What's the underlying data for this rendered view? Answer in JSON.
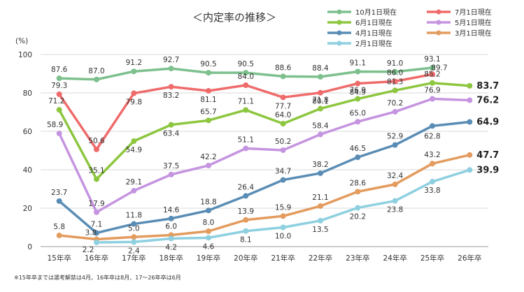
{
  "chart_data": {
    "type": "line",
    "title": "＜内定率の推移＞",
    "ylabel": "(%)",
    "ylim": [
      0,
      100
    ],
    "yticks": [
      "0",
      "20",
      "40",
      "60",
      "80",
      "100"
    ],
    "categories": [
      "15年卒",
      "16年卒",
      "17年卒",
      "18年卒",
      "19年卒",
      "20年卒",
      "21年卒",
      "22年卒",
      "23年卒",
      "24年卒",
      "25年卒",
      "26年卒"
    ],
    "legend_position": "top-right",
    "grid": true,
    "series": [
      {
        "name": "10月1日現在",
        "color": "#7dc08d",
        "values": [
          87.6,
          87.0,
          91.2,
          92.7,
          90.5,
          90.5,
          88.6,
          88.4,
          91.1,
          91.0,
          93.1,
          null
        ],
        "labels": [
          "87.6",
          "87.0",
          "91.2",
          "92.7",
          "90.5",
          "90.5",
          "88.6",
          "88.4",
          "91.1",
          "91.0",
          "93.1",
          ""
        ]
      },
      {
        "name": "7月1日現在",
        "color": "#ef6b6b",
        "values": [
          79.3,
          50.6,
          79.8,
          83.2,
          81.1,
          84.0,
          77.7,
          80.1,
          84.9,
          86.0,
          89.7,
          null
        ],
        "labels": [
          "79.3",
          "50.6",
          "79.8",
          "83.2",
          "81.1",
          "84.0",
          "77.7",
          "80.1",
          "84.9",
          "86.0",
          "89.7",
          ""
        ]
      },
      {
        "name": "6月1日現在",
        "color": "#8dc63f",
        "values": [
          71.2,
          35.1,
          54.9,
          63.4,
          65.7,
          71.1,
          64.0,
          71.8,
          76.9,
          81.3,
          85.2,
          83.7
        ],
        "labels": [
          "71.2",
          "35.1",
          "54.9",
          "63.4",
          "65.7",
          "71.1",
          "64.0",
          "71.8",
          "76.9",
          "81.3",
          "85.2",
          "83.7"
        ]
      },
      {
        "name": "5月1日現在",
        "color": "#c594e0",
        "values": [
          58.9,
          17.9,
          29.1,
          37.5,
          42.2,
          51.1,
          50.2,
          58.4,
          65.0,
          70.2,
          76.9,
          76.2
        ],
        "labels": [
          "58.9",
          "17.9",
          "29.1",
          "37.5",
          "42.2",
          "51.1",
          "50.2",
          "58.4",
          "65.0",
          "70.2",
          "76.9",
          "76.2"
        ]
      },
      {
        "name": "4月1日現在",
        "color": "#5a8db5",
        "values": [
          23.7,
          7.1,
          11.8,
          14.6,
          18.8,
          26.4,
          34.7,
          38.2,
          46.5,
          52.9,
          62.8,
          64.9
        ],
        "labels": [
          "23.7",
          "7.1",
          "11.8",
          "14.6",
          "18.8",
          "26.4",
          "34.7",
          "38.2",
          "46.5",
          "52.9",
          "62.8",
          "64.9"
        ]
      },
      {
        "name": "3月1日現在",
        "color": "#e39b5e",
        "values": [
          5.8,
          3.8,
          5.0,
          6.0,
          8.0,
          13.9,
          15.9,
          21.1,
          28.6,
          32.4,
          43.2,
          47.7
        ],
        "labels": [
          "5.8",
          "3.8",
          "5.0",
          "6.0",
          "8.0",
          "13.9",
          "15.9",
          "21.1",
          "28.6",
          "32.4",
          "43.2",
          "47.7"
        ]
      },
      {
        "name": "2月1日現在",
        "color": "#8ed0e0",
        "values": [
          null,
          2.2,
          2.4,
          4.2,
          4.6,
          8.1,
          10.0,
          13.5,
          20.2,
          23.8,
          33.8,
          39.9
        ],
        "labels": [
          "",
          "2.2",
          "2.4",
          "4.2",
          "4.6",
          "8.1",
          "10.0",
          "13.5",
          "20.2",
          "23.8",
          "33.8",
          "39.9"
        ]
      }
    ]
  },
  "footnote": "※15年卒までは選考解禁は4月、16年卒は8月、17～26年卒は6月"
}
